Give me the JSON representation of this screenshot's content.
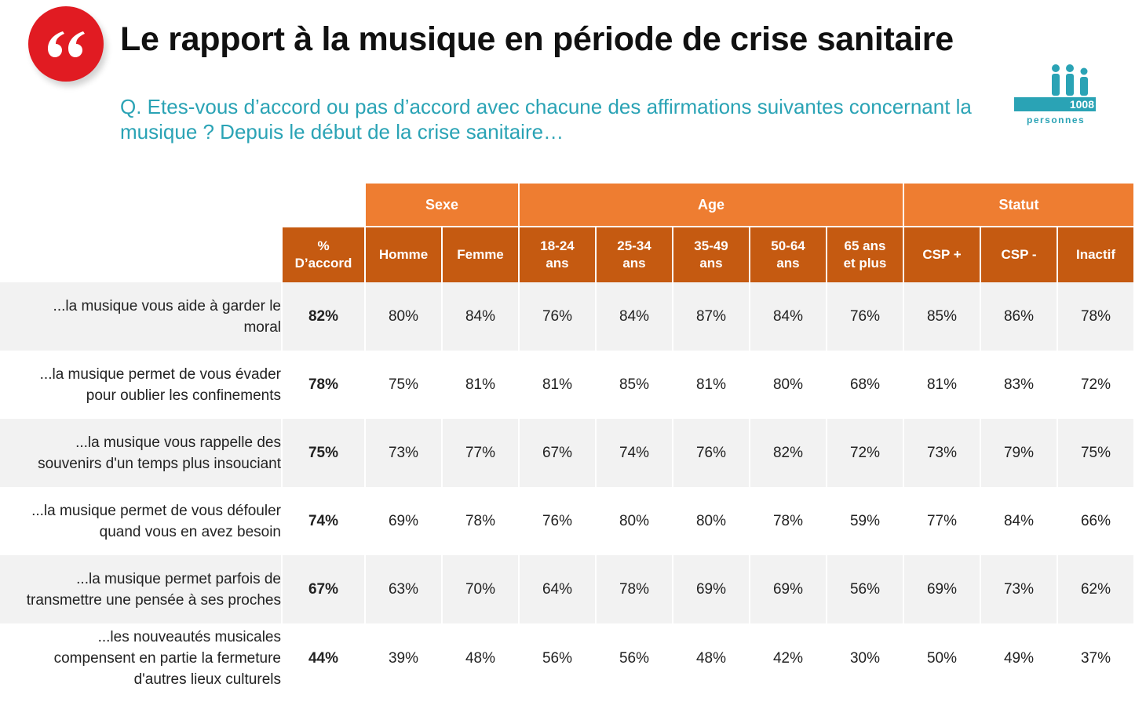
{
  "title": "Le rapport à la musique en période de crise sanitaire",
  "question": "Q. Etes-vous d’accord ou pas d’accord avec chacune des affirmations suivantes concernant la musique ? Depuis le début de la crise sanitaire…",
  "sample": {
    "count": "1008",
    "unit": "personnes"
  },
  "colors": {
    "accent_red": "#e11b22",
    "teal": "#2aa3b5",
    "orange": "#ee7d31",
    "dark_orange": "#c55a11",
    "row_shade": "#f2f2f2"
  },
  "icons": {
    "quote": "quote-icon",
    "people": "people-icon"
  },
  "chart_data": {
    "type": "table",
    "groups": [
      {
        "name": "Sexe",
        "span": 2
      },
      {
        "name": "Age",
        "span": 5
      },
      {
        "name": "Statut",
        "span": 3
      }
    ],
    "total_header": [
      "%",
      "D’accord"
    ],
    "columns": [
      [
        "Homme"
      ],
      [
        "Femme"
      ],
      [
        "18-24",
        "ans"
      ],
      [
        "25-34",
        "ans"
      ],
      [
        "35-49",
        "ans"
      ],
      [
        "50-64",
        "ans"
      ],
      [
        "65 ans",
        "et plus"
      ],
      [
        "CSP +"
      ],
      [
        "CSP -"
      ],
      [
        "Inactif"
      ]
    ],
    "rows": [
      {
        "label": [
          "...la musique vous aide à garder le",
          "moral"
        ],
        "total": "82%",
        "values": [
          "80%",
          "84%",
          "76%",
          "84%",
          "87%",
          "84%",
          "76%",
          "85%",
          "86%",
          "78%"
        ]
      },
      {
        "label": [
          "...la musique permet de vous évader",
          "pour oublier les confinements"
        ],
        "total": "78%",
        "values": [
          "75%",
          "81%",
          "81%",
          "85%",
          "81%",
          "80%",
          "68%",
          "81%",
          "83%",
          "72%"
        ]
      },
      {
        "label": [
          "...la musique vous rappelle des",
          "souvenirs d'un temps plus insouciant"
        ],
        "total": "75%",
        "values": [
          "73%",
          "77%",
          "67%",
          "74%",
          "76%",
          "82%",
          "72%",
          "73%",
          "79%",
          "75%"
        ]
      },
      {
        "label": [
          "...la musique permet de vous défouler",
          "quand vous en avez besoin"
        ],
        "total": "74%",
        "values": [
          "69%",
          "78%",
          "76%",
          "80%",
          "80%",
          "78%",
          "59%",
          "77%",
          "84%",
          "66%"
        ]
      },
      {
        "label": [
          "...la musique permet parfois de",
          "transmettre une pensée à ses proches"
        ],
        "total": "67%",
        "values": [
          "63%",
          "70%",
          "64%",
          "78%",
          "69%",
          "69%",
          "56%",
          "69%",
          "73%",
          "62%"
        ]
      },
      {
        "label": [
          "...les nouveautés musicales",
          "compensent en partie la fermeture",
          "d'autres lieux culturels"
        ],
        "total": "44%",
        "values": [
          "39%",
          "48%",
          "56%",
          "56%",
          "48%",
          "42%",
          "30%",
          "50%",
          "49%",
          "37%"
        ]
      }
    ]
  }
}
